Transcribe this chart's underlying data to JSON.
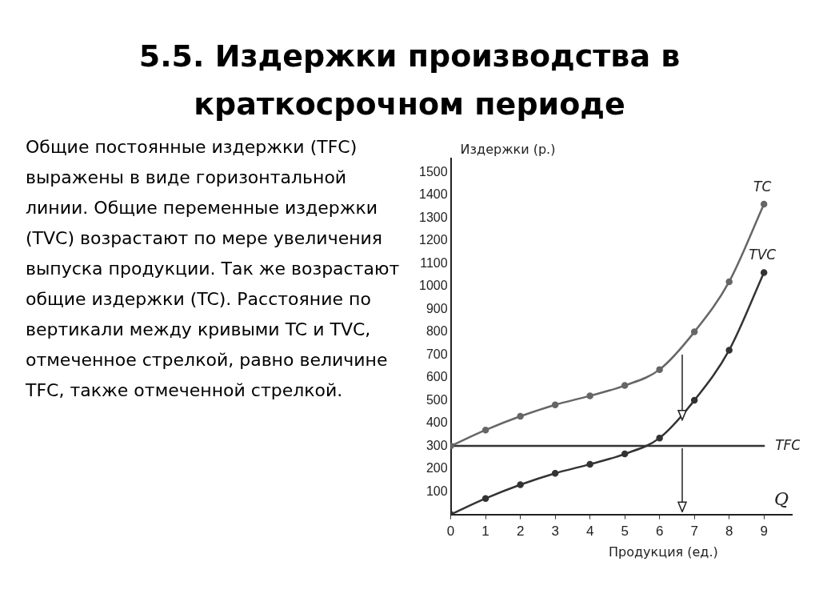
{
  "chart_data": {
    "type": "line",
    "title": "5.5. Издержки производства в краткосрочном периоде",
    "xlabel": "Продукция (ед.)",
    "ylabel": "Издержки (р.)",
    "annotations": [
      "Общие постоянные издержки (TFC) выражены в виде горизонтальной линии. Общие переменные издержки (TVC) возрастают по мере увеличения выпуска продукции. Так же возрастают общие издержки (TC). Расстояние по вертикали между кривыми TC и TVC, отмеченное стрелкой, равно величине TFC, также отмеченной стрелкой.",
      "Q"
    ],
    "series": [
      {
        "name": "TC",
        "color": "#666666",
        "x": [
          0,
          1,
          2,
          3,
          4,
          5,
          6,
          7,
          8,
          9
        ],
        "values": [
          300,
          370,
          430,
          480,
          520,
          565,
          635,
          800,
          1020,
          1360
        ]
      },
      {
        "name": "TVC",
        "color": "#333333",
        "x": [
          0,
          1,
          2,
          3,
          4,
          5,
          6,
          7,
          8,
          9
        ],
        "values": [
          0,
          70,
          130,
          180,
          220,
          265,
          335,
          500,
          720,
          1060
        ]
      },
      {
        "name": "TFC",
        "color": "#333333",
        "marker": "none",
        "x": [
          0,
          9
        ],
        "values": [
          300,
          300
        ]
      }
    ],
    "xlim": [
      0,
      9.8
    ],
    "xticks": [
      0,
      1,
      2,
      3,
      4,
      5,
      6,
      7,
      8,
      9
    ],
    "ylim": [
      0,
      1560
    ],
    "yticks": [
      100,
      200,
      300,
      400,
      500,
      600,
      700,
      800,
      900,
      1000,
      1100,
      1200,
      1300,
      1400,
      1500
    ],
    "grid": false,
    "legend": false,
    "marker": "circle",
    "line_style": "solid"
  }
}
